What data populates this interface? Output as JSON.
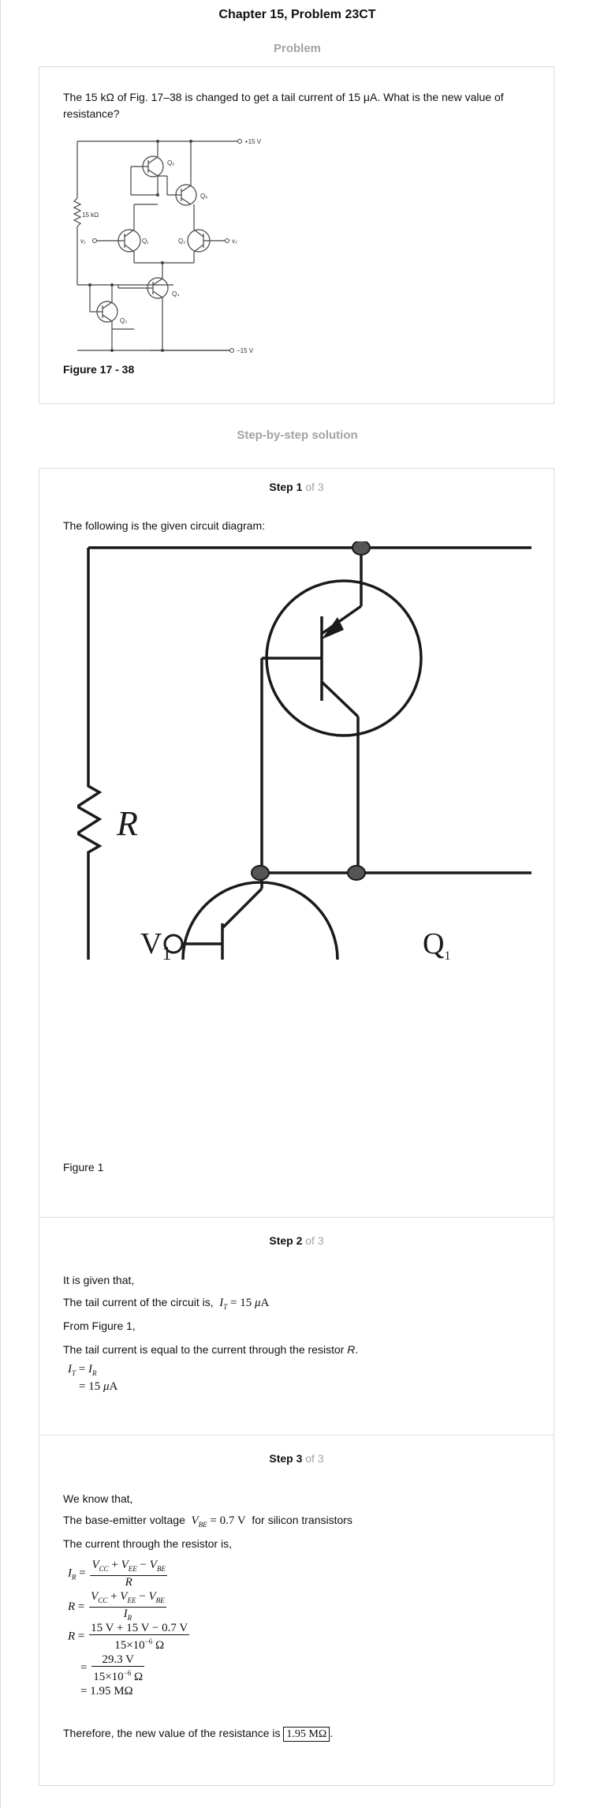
{
  "page": {
    "title": "Chapter 15, Problem 23CT",
    "problem_label": "Problem",
    "solution_label": "Step-by-step solution"
  },
  "problem": {
    "text": "The 15 kΩ of Fig. 17–38 is changed to get a tail current of 15 μA. What is the new value of resistance?",
    "figure_caption": "Figure 17 - 38",
    "figure_labels": {
      "vplus": "+15 V",
      "vminus": "−15 V",
      "resistor": "15 kΩ",
      "v1": "v₁",
      "v2": "v₂",
      "q1": "Q₁",
      "q2": "Q₂",
      "q3": "Q₃",
      "q4": "Q₄",
      "q5": "Q₅",
      "q6": "Q₆"
    }
  },
  "steps": {
    "of_label": "of 3",
    "step1": {
      "title": "Step 1",
      "text": "The following is the given circuit diagram:",
      "fig_labels": {
        "r": "R",
        "v1": "V",
        "v1_sub": "1",
        "q1": "Q",
        "q1_sub": "1"
      },
      "caption": "Figure 1"
    },
    "step2": {
      "title": "Step 2",
      "line1": "It is given that,",
      "line2": "The tail current of the circuit is,",
      "line3": "From Figure 1,",
      "line4a": "The tail current is equal to the current through the resistor ",
      "line4b": "R",
      "line4c": "."
    },
    "step3": {
      "title": "Step 3",
      "line1": "We know that,",
      "line2a": "The base-emitter voltage",
      "line2b": "for silicon transistors",
      "line3": "The current through the resistor is,",
      "conclusion": "Therefore, the new value of the resistance is",
      "answer": "1.95 MΩ",
      "eq_num1": "15 V + 15 V − 0.7 V",
      "eq_den1": "15×10",
      "eq_num2": "29.3 V",
      "eq_result": "= 1.95 MΩ"
    }
  }
}
